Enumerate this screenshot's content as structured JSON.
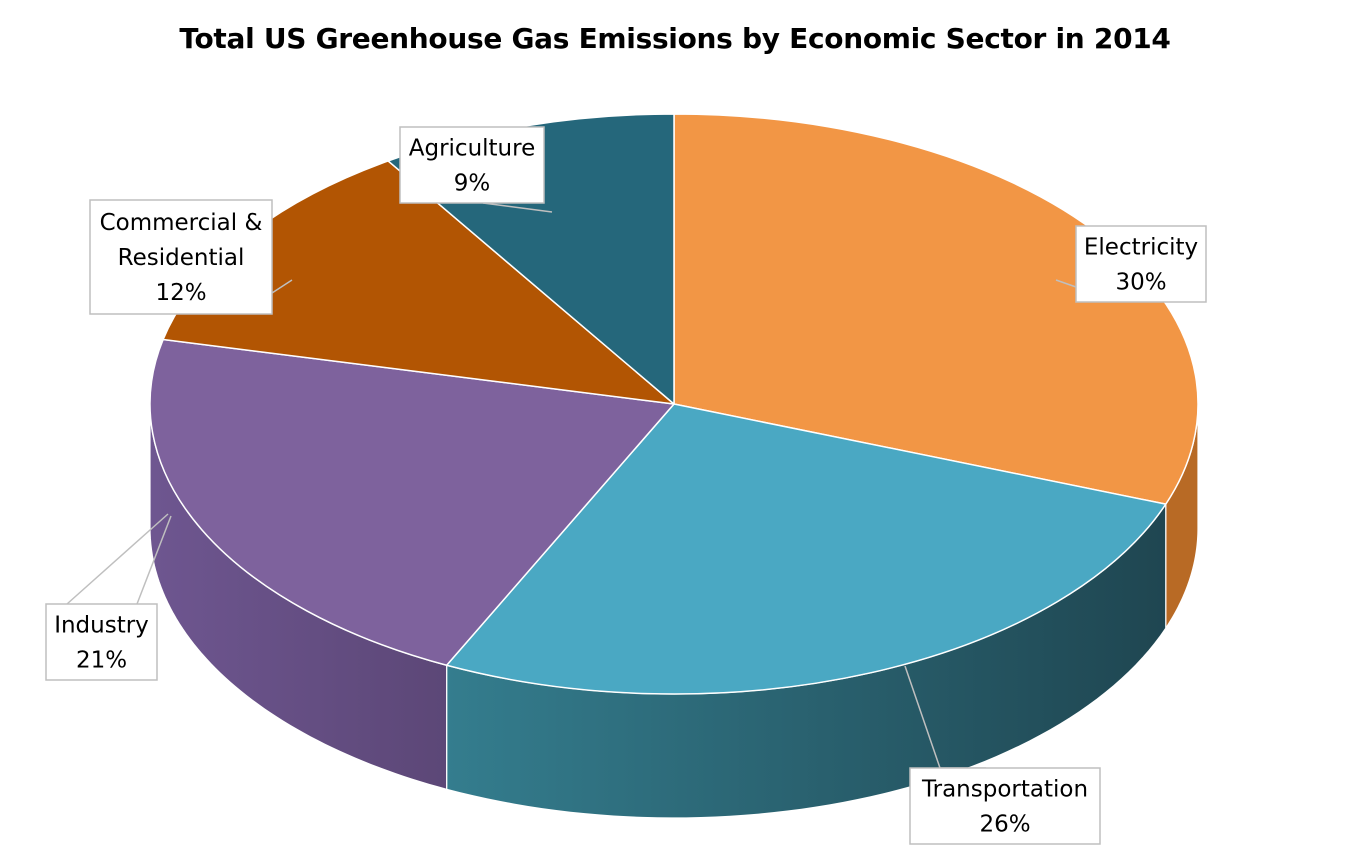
{
  "chart_data": {
    "type": "pie",
    "title": "Total US Greenhouse Gas Emissions by Economic Sector in 2014",
    "style": "3d",
    "categories": [
      "Electricity",
      "Transportation",
      "Industry",
      "Commercial & Residential",
      "Agriculture"
    ],
    "values": [
      30,
      26,
      21,
      12,
      9
    ],
    "value_suffix": "%",
    "colors": [
      "#f29645",
      "#4aa8c3",
      "#7e629d",
      "#b25503",
      "#25677b"
    ],
    "side_colors": [
      "#b86a25",
      "#2b6c80",
      "#6a5187",
      "#7a3a02",
      "#1c4a58"
    ],
    "labels": [
      {
        "lines": [
          "Electricity"
        ],
        "value": "30%"
      },
      {
        "lines": [
          "Transportation"
        ],
        "value": "26%"
      },
      {
        "lines": [
          "Industry"
        ],
        "value": "21%"
      },
      {
        "lines": [
          "Commercial &",
          "Residential"
        ],
        "value": "12%"
      },
      {
        "lines": [
          "Agriculture"
        ],
        "value": "9%"
      }
    ],
    "legend": "none"
  }
}
